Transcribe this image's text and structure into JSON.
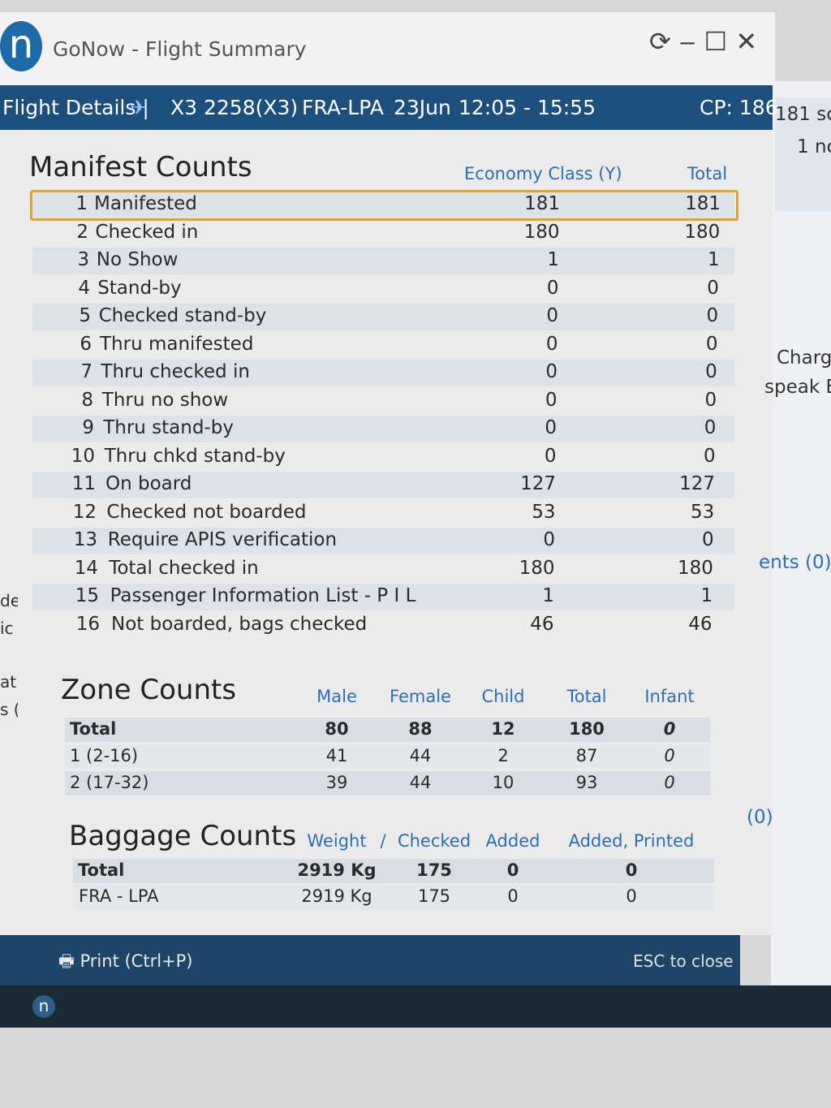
{
  "window": {
    "title": "GoNow - Flight Summary",
    "logo": "n"
  },
  "header": {
    "label": "Flight Details |",
    "flight": "X3 2258(X3)",
    "route": "FRA-LPA",
    "date": "23Jun",
    "time": "12:05 - 15:55",
    "cp": "CP: 186"
  },
  "side": {
    "right": [
      "181 sc",
      "1 nc",
      "Charg",
      "speak E",
      "ents (0)",
      "(0)"
    ],
    "left": [
      "de",
      "ic",
      "at",
      "s ("
    ]
  },
  "manifest": {
    "title": "Manifest Counts",
    "columns": [
      "Economy Class (Y)",
      "Total"
    ],
    "rows": [
      [
        1,
        "Manifested",
        181,
        181
      ],
      [
        2,
        "Checked in",
        180,
        180
      ],
      [
        3,
        "No Show",
        1,
        1
      ],
      [
        4,
        "Stand-by",
        0,
        0
      ],
      [
        5,
        "Checked stand-by",
        0,
        0
      ],
      [
        6,
        "Thru manifested",
        0,
        0
      ],
      [
        7,
        "Thru checked in",
        0,
        0
      ],
      [
        8,
        "Thru no show",
        0,
        0
      ],
      [
        9,
        "Thru stand-by",
        0,
        0
      ],
      [
        10,
        "Thru chkd stand-by",
        0,
        0
      ],
      [
        11,
        "On board",
        127,
        127
      ],
      [
        12,
        "Checked not boarded",
        53,
        53
      ],
      [
        13,
        "Require APIS verification",
        0,
        0
      ],
      [
        14,
        "Total checked in",
        180,
        180
      ],
      [
        15,
        "Passenger Information List - P I L",
        1,
        1
      ],
      [
        16,
        "Not boarded, bags checked",
        46,
        46
      ]
    ]
  },
  "zone": {
    "title": "Zone Counts",
    "columns": [
      "Male",
      "Female",
      "Child",
      "Total",
      "Infant"
    ],
    "rows": [
      [
        "Total",
        80,
        88,
        12,
        180,
        0
      ],
      [
        "1 (2-16)",
        41,
        44,
        2,
        87,
        0
      ],
      [
        "2 (17-32)",
        39,
        44,
        10,
        93,
        0
      ]
    ]
  },
  "baggage": {
    "title": "Baggage Counts",
    "columns": [
      "Weight",
      "/",
      "Checked",
      "Added",
      "Added, Printed"
    ],
    "rows": [
      [
        "Total",
        "2919 Kg",
        175,
        0,
        0
      ],
      [
        "FRA - LPA",
        "2919 Kg",
        175,
        0,
        0
      ]
    ]
  },
  "footer": {
    "print": "Print (Ctrl+P)",
    "close": "ESC to close"
  },
  "taskbar": {
    "icon": "n"
  }
}
